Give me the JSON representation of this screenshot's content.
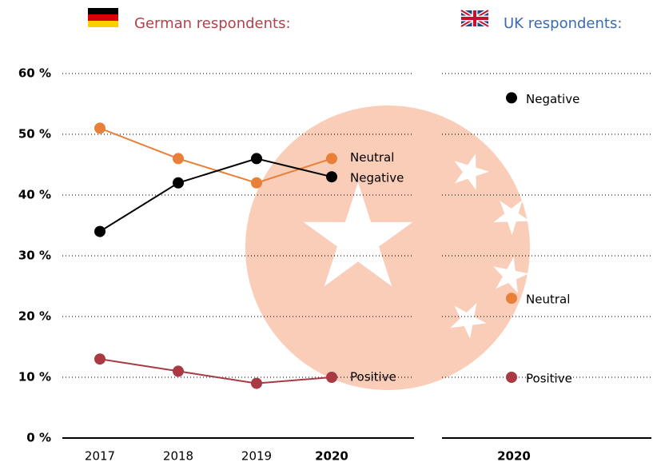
{
  "chart_data": [
    {
      "type": "line",
      "title": "German respondents:",
      "categories": [
        "2017",
        "2018",
        "2019",
        "2020"
      ],
      "series": [
        {
          "name": "Neutral",
          "color": "#e8803a",
          "values": [
            51,
            46,
            42,
            46
          ]
        },
        {
          "name": "Negative",
          "color": "#000000",
          "values": [
            34,
            42,
            46,
            43
          ]
        },
        {
          "name": "Positive",
          "color": "#a93a44",
          "values": [
            13,
            11,
            9,
            10
          ]
        }
      ],
      "ylim": [
        0,
        60
      ],
      "yticks": [
        {
          "value": 0,
          "label": "0 %"
        },
        {
          "value": 10,
          "label": "10 %"
        },
        {
          "value": 20,
          "label": "20 %"
        },
        {
          "value": 30,
          "label": "30 %"
        },
        {
          "value": 40,
          "label": "40 %"
        },
        {
          "value": 50,
          "label": "50 %"
        },
        {
          "value": 60,
          "label": "60 %"
        }
      ],
      "grid": true
    },
    {
      "type": "scatter",
      "title": "UK respondents:",
      "categories": [
        "2020"
      ],
      "series": [
        {
          "name": "Negative",
          "color": "#000000",
          "values": [
            56
          ]
        },
        {
          "name": "Neutral",
          "color": "#e8803a",
          "values": [
            23
          ]
        },
        {
          "name": "Positive",
          "color": "#a93a44",
          "values": [
            10
          ]
        }
      ],
      "ylim": [
        0,
        60
      ],
      "grid": true
    }
  ]
}
